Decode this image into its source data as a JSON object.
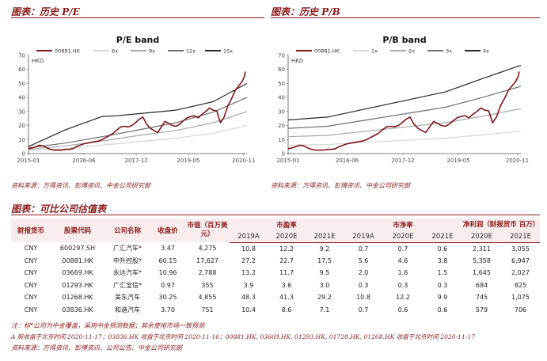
{
  "left_panel": {
    "title": "图表：历史 P/E",
    "source": "资料来源：万得资讯、彭博资讯、中金公司研究部"
  },
  "right_panel": {
    "title": "图表：历史 P/B",
    "source": "资料来源：万得资讯、彭博资讯、中金公司研究部"
  },
  "chart_data": [
    {
      "type": "line",
      "title": "P/E band",
      "ylabel": "HKD",
      "ylim": [
        0,
        70
      ],
      "yticks": [
        0,
        10,
        20,
        30,
        40,
        50,
        60,
        70
      ],
      "xlim": [
        2015.0,
        2020.92
      ],
      "xticks": [
        {
          "pos": 2015.0,
          "label": "2015-01"
        },
        {
          "pos": 2016.5,
          "label": "2016-06"
        },
        {
          "pos": 2017.92,
          "label": "2017-12"
        },
        {
          "pos": 2019.33,
          "label": "2019-05"
        },
        {
          "pos": 2020.83,
          "label": "2020-11"
        }
      ],
      "series": [
        {
          "name": "00881.HK",
          "color": "#7f1416",
          "width": 1.6,
          "x": [
            2015.0,
            2015.1,
            2015.2,
            2015.3,
            2015.4,
            2015.5,
            2015.6,
            2015.7,
            2015.8,
            2015.9,
            2016.0,
            2016.1,
            2016.2,
            2016.3,
            2016.4,
            2016.5,
            2016.6,
            2016.7,
            2016.8,
            2016.9,
            2017.0,
            2017.1,
            2017.2,
            2017.3,
            2017.4,
            2017.5,
            2017.6,
            2017.7,
            2017.8,
            2017.9,
            2018.0,
            2018.1,
            2018.2,
            2018.3,
            2018.4,
            2018.5,
            2018.6,
            2018.7,
            2018.8,
            2018.9,
            2019.0,
            2019.1,
            2019.2,
            2019.3,
            2019.4,
            2019.5,
            2019.6,
            2019.7,
            2019.8,
            2019.9,
            2020.0,
            2020.1,
            2020.2,
            2020.3,
            2020.4,
            2020.5,
            2020.6,
            2020.7,
            2020.75,
            2020.8,
            2020.85,
            2020.88
          ],
          "values": [
            3.5,
            4.0,
            5.0,
            6.0,
            5.5,
            4.0,
            3.0,
            2.5,
            2.5,
            2.5,
            3.0,
            3.0,
            3.5,
            5.0,
            6.0,
            7.0,
            7.5,
            8.0,
            8.5,
            9.0,
            10.0,
            11.5,
            13.0,
            14.5,
            17.0,
            19.0,
            19.5,
            19.0,
            20.0,
            22.0,
            24.5,
            26.0,
            21.0,
            18.0,
            16.5,
            15.0,
            19.0,
            23.0,
            21.5,
            20.0,
            19.5,
            21.0,
            23.5,
            25.5,
            26.5,
            27.0,
            25.5,
            28.0,
            30.0,
            32.5,
            31.0,
            30.5,
            22.0,
            26.0,
            34.0,
            39.0,
            45.0,
            48.5,
            50.0,
            52.0,
            55.0,
            58.5
          ]
        },
        {
          "name": "6x",
          "color": "#d6d6d6",
          "width": 1.2,
          "x": [
            2015.0,
            2016.0,
            2017.0,
            2018.0,
            2019.0,
            2020.0,
            2020.92
          ],
          "values": [
            2.0,
            3.5,
            6.0,
            8.5,
            11.0,
            14.5,
            20.0
          ]
        },
        {
          "name": "9x",
          "color": "#a8a8a8",
          "width": 1.2,
          "x": [
            2015.0,
            2016.0,
            2017.0,
            2018.0,
            2019.0,
            2020.0,
            2020.92
          ],
          "values": [
            3.0,
            5.5,
            9.0,
            13.0,
            16.5,
            22.0,
            30.0
          ]
        },
        {
          "name": "12x",
          "color": "#707070",
          "width": 1.2,
          "x": [
            2015.0,
            2016.0,
            2017.0,
            2018.0,
            2019.0,
            2020.0,
            2020.92
          ],
          "values": [
            4.0,
            7.5,
            12.0,
            17.0,
            22.0,
            29.5,
            40.0
          ]
        },
        {
          "name": "15x",
          "color": "#262626",
          "width": 1.2,
          "x": [
            2015.0,
            2016.0,
            2017.0,
            2017.4,
            2018.0,
            2019.0,
            2020.0,
            2020.92
          ],
          "values": [
            5.0,
            17.0,
            26.5,
            27.0,
            28.5,
            31.0,
            37.0,
            50.0
          ]
        }
      ]
    },
    {
      "type": "line",
      "title": "P/B band",
      "ylabel": "HKD",
      "ylim": [
        0,
        70
      ],
      "yticks": [
        0,
        10,
        20,
        30,
        40,
        50,
        60,
        70
      ],
      "xlim": [
        2015.0,
        2020.92
      ],
      "xticks": [
        {
          "pos": 2015.0,
          "label": "2015-01"
        },
        {
          "pos": 2016.5,
          "label": "2016-06"
        },
        {
          "pos": 2017.92,
          "label": "2017-12"
        },
        {
          "pos": 2019.33,
          "label": "2019-05"
        },
        {
          "pos": 2020.83,
          "label": "2020-11"
        }
      ],
      "series": [
        {
          "name": "00881.HK",
          "color": "#7f1416",
          "width": 1.6,
          "x": [
            2015.0,
            2015.1,
            2015.2,
            2015.3,
            2015.4,
            2015.5,
            2015.6,
            2015.7,
            2015.8,
            2015.9,
            2016.0,
            2016.1,
            2016.2,
            2016.3,
            2016.4,
            2016.5,
            2016.6,
            2016.7,
            2016.8,
            2016.9,
            2017.0,
            2017.1,
            2017.2,
            2017.3,
            2017.4,
            2017.5,
            2017.6,
            2017.7,
            2017.8,
            2017.9,
            2018.0,
            2018.1,
            2018.2,
            2018.3,
            2018.4,
            2018.5,
            2018.6,
            2018.7,
            2018.8,
            2018.9,
            2019.0,
            2019.1,
            2019.2,
            2019.3,
            2019.4,
            2019.5,
            2019.6,
            2019.7,
            2019.8,
            2019.9,
            2020.0,
            2020.1,
            2020.2,
            2020.3,
            2020.4,
            2020.5,
            2020.6,
            2020.7,
            2020.75,
            2020.8,
            2020.85,
            2020.88
          ],
          "values": [
            3.5,
            4.0,
            5.0,
            6.0,
            5.5,
            4.0,
            3.0,
            2.5,
            2.5,
            2.5,
            3.0,
            3.0,
            3.5,
            5.0,
            6.0,
            7.0,
            7.5,
            8.0,
            8.5,
            9.0,
            10.0,
            11.5,
            13.0,
            14.5,
            17.0,
            19.0,
            19.5,
            19.0,
            20.0,
            22.0,
            24.5,
            26.0,
            21.0,
            18.0,
            16.5,
            15.0,
            19.0,
            23.0,
            21.5,
            20.0,
            19.5,
            21.0,
            23.5,
            25.5,
            26.5,
            27.0,
            25.5,
            28.0,
            30.0,
            32.5,
            31.0,
            30.5,
            22.0,
            26.0,
            34.0,
            39.0,
            45.0,
            48.5,
            50.0,
            52.0,
            55.0,
            58.5
          ]
        },
        {
          "name": "1x",
          "color": "#d6d6d6",
          "width": 1.2,
          "x": [
            2015.0,
            2016.0,
            2017.0,
            2018.0,
            2019.0,
            2020.0,
            2020.92
          ],
          "values": [
            6.0,
            6.5,
            8.0,
            9.5,
            11.0,
            13.5,
            16.0
          ]
        },
        {
          "name": "2x",
          "color": "#a8a8a8",
          "width": 1.2,
          "x": [
            2015.0,
            2016.0,
            2017.0,
            2018.0,
            2019.0,
            2020.0,
            2020.92
          ],
          "values": [
            12.0,
            13.0,
            16.0,
            19.0,
            22.0,
            27.0,
            32.0
          ]
        },
        {
          "name": "3x",
          "color": "#707070",
          "width": 1.2,
          "x": [
            2015.0,
            2016.0,
            2017.0,
            2018.0,
            2019.0,
            2020.0,
            2020.92
          ],
          "values": [
            18.0,
            19.5,
            24.0,
            28.5,
            33.0,
            40.5,
            48.0
          ]
        },
        {
          "name": "4x",
          "color": "#262626",
          "width": 1.2,
          "x": [
            2015.0,
            2016.0,
            2017.0,
            2018.0,
            2019.0,
            2020.0,
            2020.92
          ],
          "values": [
            24.0,
            26.0,
            32.0,
            38.0,
            44.0,
            54.0,
            63.0
          ]
        }
      ]
    }
  ],
  "table": {
    "title": "图表：可比公司估值表",
    "cat_headers": {
      "currency": "财报货币",
      "code": "股票代码",
      "name": "公司名称",
      "price": "收盘价",
      "mktcap": "市值（百万美元）",
      "pe": "市盈率",
      "pb": "市净率",
      "np": "净利润（财报货币 百万）"
    },
    "years": {
      "pe": [
        "2019A",
        "2020E",
        "2021E"
      ],
      "pb": [
        "2019A",
        "2020E",
        "2021E"
      ],
      "np": [
        "2020E",
        "2021E"
      ]
    },
    "rows": [
      [
        "CNY",
        "600297.SH",
        "广汇汽车*",
        "3.47",
        "4,275",
        "10.8",
        "12.2",
        "9.2",
        "0.7",
        "0.7",
        "0.6",
        "2,311",
        "3,055"
      ],
      [
        "CNY",
        "00881.HK",
        "中升控股*",
        "60.15",
        "17,627",
        "27.2",
        "22.7",
        "17.5",
        "5.6",
        "4.6",
        "3.8",
        "5,358",
        "6,947"
      ],
      [
        "CNY",
        "03669.HK",
        "永达汽车*",
        "10.96",
        "2,788",
        "13.2",
        "11.7",
        "9.5",
        "2.0",
        "1.6",
        "1.5",
        "1,645",
        "2,027"
      ],
      [
        "CNY",
        "01293.HK",
        "广汇宝信*",
        "0.97",
        "355",
        "3.9",
        "3.6",
        "3.0",
        "0.3",
        "0.3",
        "0.3",
        "684",
        "825"
      ],
      [
        "CNY",
        "01268.HK",
        "美东汽车",
        "30.25",
        "4,855",
        "48.3",
        "41.3",
        "29.2",
        "10.8",
        "12.2",
        "9.9",
        "745",
        "1,075"
      ],
      [
        "CNY",
        "03836.HK",
        "和谐汽车",
        "3.70",
        "751",
        "10.4",
        "8.6",
        "7.1",
        "0.7",
        "0.6",
        "0.6",
        "579",
        "706"
      ]
    ],
    "notes": [
      "注：标*公司为中金覆盖，采用中金预测数据；其余使用市场一致预测",
      "A 股收盘于北京时间 2020-11-17；03836.HK 收盘于北京时间 2020-11-16；00881.HK, 03669.HK, 01293.HK, 01728.HK, 01268.HK 收盘于北京时间 2020-11-17",
      "资料来源：万得资讯、彭博资讯、公司公告、中金公司研究部"
    ]
  }
}
